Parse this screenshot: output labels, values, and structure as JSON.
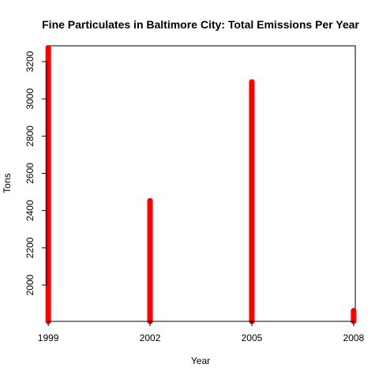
{
  "chart_data": {
    "type": "bar",
    "title": "Fine Particulates in Baltimore City: Total Emissions Per Year",
    "xlabel": "Year",
    "ylabel": "Tons",
    "categories": [
      "1999",
      "2002",
      "2005",
      "2008"
    ],
    "x": [
      1999,
      2002,
      2005,
      2008
    ],
    "values": [
      3274,
      2453,
      3091,
      1862
    ],
    "xlim": [
      1998.95,
      2008.05
    ],
    "ylim": [
      1805,
      3285
    ],
    "yticks": [
      2000,
      2200,
      2400,
      2600,
      2800,
      3000,
      3200
    ],
    "ytick_labels": [
      "2000",
      "2200",
      "2400",
      "2600",
      "2800",
      "3000",
      "3200"
    ],
    "bar_color": "#ff0000",
    "grid": false,
    "legend": "none"
  }
}
